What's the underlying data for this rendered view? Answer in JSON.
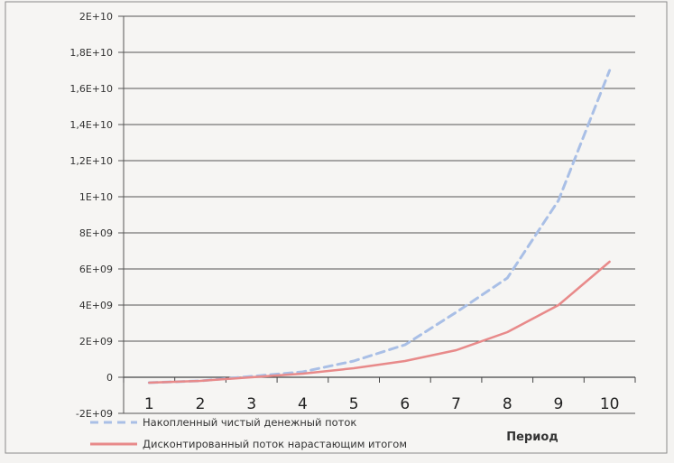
{
  "chart_data": {
    "type": "line",
    "title": "",
    "xlabel": "Период",
    "ylabel": "",
    "categories": [
      "1",
      "2",
      "3",
      "4",
      "5",
      "6",
      "7",
      "8",
      "9",
      "10"
    ],
    "y_ticks": [
      "2E+10",
      "1,8E+10",
      "1,6E+10",
      "1,4E+10",
      "1,2E+10",
      "1E+10",
      "8E+09",
      "6E+09",
      "4E+09",
      "2E+09",
      "0",
      "-2E+09"
    ],
    "ylim": [
      -2000000000,
      20000000000
    ],
    "grid": true,
    "legend_position": "bottom-left",
    "series": [
      {
        "name": "Накопленный чистый денежный поток",
        "style": "dashed",
        "color": "#a9bfe6",
        "values": [
          -300000000,
          -200000000,
          50000000,
          300000000,
          900000000,
          1800000000,
          3600000000,
          5500000000,
          9800000000,
          17000000000
        ]
      },
      {
        "name": "Дисконтированный поток нарастающим итогом",
        "style": "solid",
        "color": "#e88a8a",
        "values": [
          -300000000,
          -200000000,
          0,
          200000000,
          500000000,
          900000000,
          1500000000,
          2500000000,
          4000000000,
          6400000000
        ]
      }
    ]
  }
}
